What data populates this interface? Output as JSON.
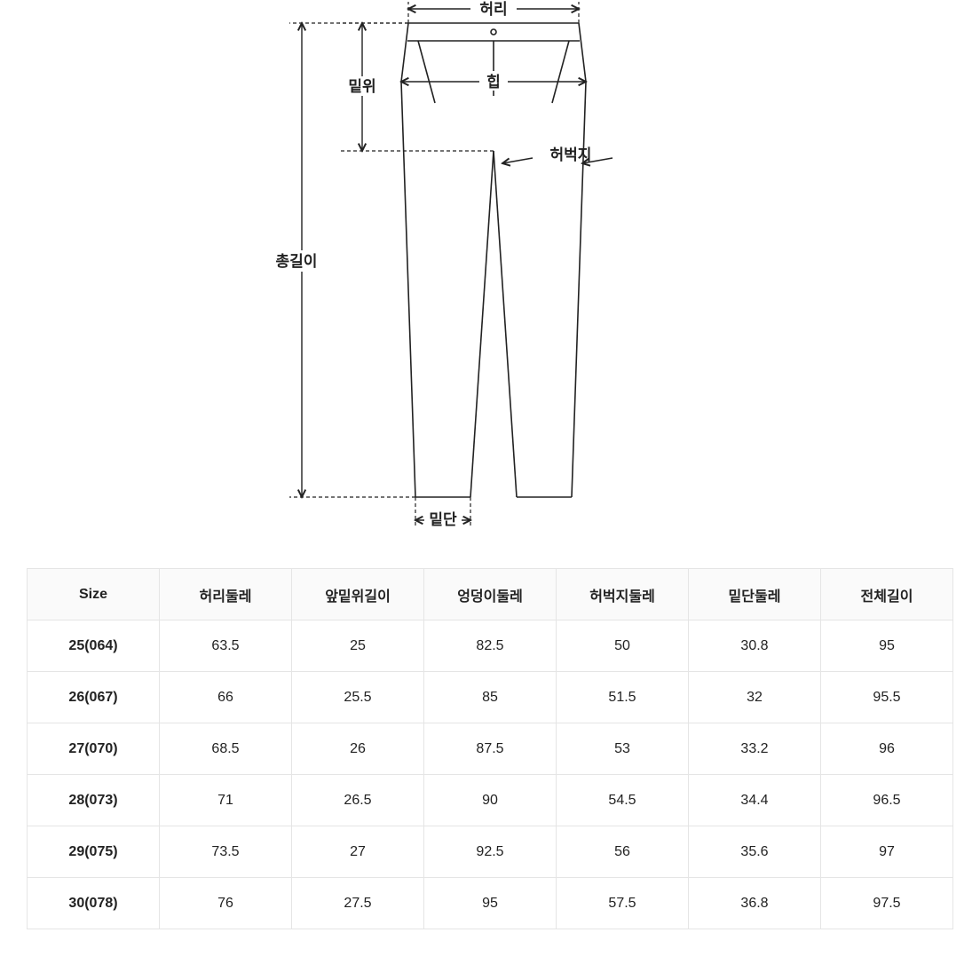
{
  "diagram": {
    "labels": {
      "waist": "허리",
      "rise": "밑위",
      "hip": "힙",
      "thigh": "허벅지",
      "totalLength": "총길이",
      "hem": "밑단"
    },
    "stroke": "#222222",
    "dash": "4 3",
    "lineWidth": 1.6,
    "background": "#ffffff"
  },
  "table": {
    "columns": [
      "Size",
      "허리둘레",
      "앞밑위길이",
      "엉덩이둘레",
      "허벅지둘레",
      "밑단둘레",
      "전체길이"
    ],
    "rows": [
      [
        "25(064)",
        "63.5",
        "25",
        "82.5",
        "50",
        "30.8",
        "95"
      ],
      [
        "26(067)",
        "66",
        "25.5",
        "85",
        "51.5",
        "32",
        "95.5"
      ],
      [
        "27(070)",
        "68.5",
        "26",
        "87.5",
        "53",
        "33.2",
        "96"
      ],
      [
        "28(073)",
        "71",
        "26.5",
        "90",
        "54.5",
        "34.4",
        "96.5"
      ],
      [
        "29(075)",
        "73.5",
        "27",
        "92.5",
        "56",
        "35.6",
        "97"
      ],
      [
        "30(078)",
        "76",
        "27.5",
        "95",
        "57.5",
        "36.8",
        "97.5"
      ]
    ],
    "headerBg": "#fafafa",
    "borderColor": "#e5e5e5",
    "fontSize": 16
  }
}
